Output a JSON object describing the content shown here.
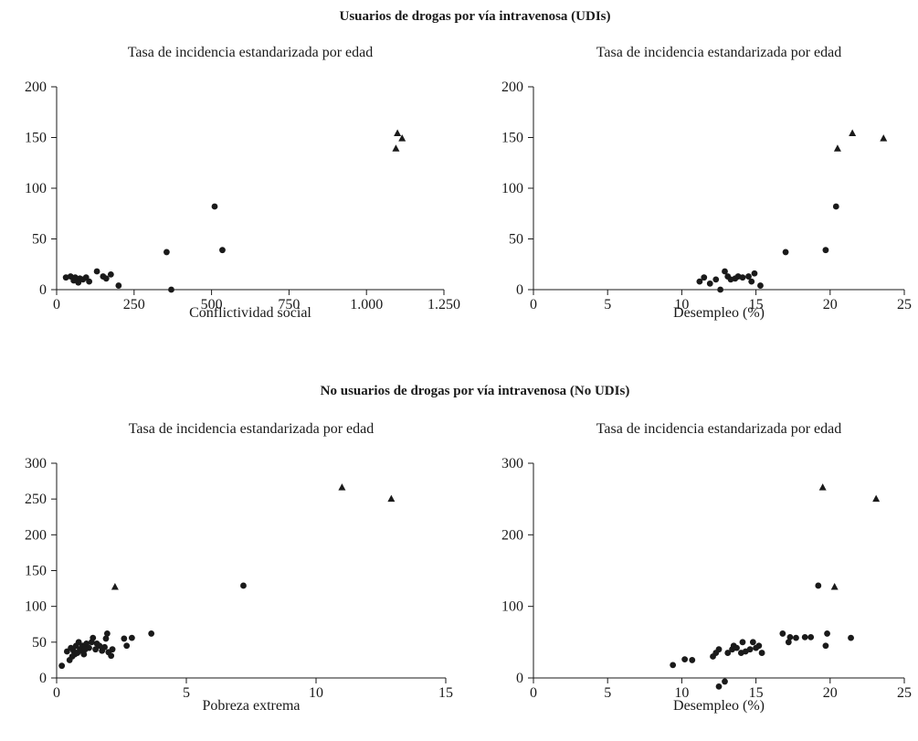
{
  "sections": [
    {
      "title": "Usuarios de drogas por vía intravenosa (UDIs)"
    },
    {
      "title": "No usuarios de drogas por vía intravenosa (No UDIs)"
    }
  ],
  "colors": {
    "marker": "#1a1a1a",
    "axis": "#1a1a1a",
    "background": "#ffffff"
  },
  "chart_data": [
    {
      "type": "scatter",
      "title": "Tasa de incidencia estandarizada por edad",
      "xlabel": "Conflictividad social",
      "xlim": [
        0,
        1250
      ],
      "ylim": [
        0,
        200
      ],
      "xticks": [
        0,
        250,
        500,
        750,
        1000,
        1250
      ],
      "xtick_labels": [
        "0",
        "250",
        "500",
        "750",
        "1.000",
        "1.250"
      ],
      "yticks": [
        0,
        50,
        100,
        150,
        200
      ],
      "ytick_labels": [
        "0",
        "50",
        "100",
        "150",
        "200"
      ],
      "series": [
        {
          "marker": "circle",
          "points": [
            [
              30,
              12
            ],
            [
              45,
              13
            ],
            [
              55,
              9
            ],
            [
              60,
              12
            ],
            [
              70,
              7
            ],
            [
              75,
              11
            ],
            [
              85,
              10
            ],
            [
              95,
              12
            ],
            [
              105,
              8
            ],
            [
              130,
              18
            ],
            [
              150,
              13
            ],
            [
              160,
              11
            ],
            [
              175,
              15
            ],
            [
              200,
              4
            ],
            [
              355,
              37
            ],
            [
              370,
              0
            ],
            [
              510,
              82
            ],
            [
              535,
              39
            ]
          ]
        },
        {
          "marker": "triangle",
          "points": [
            [
              1100,
              154
            ],
            [
              1095,
              139
            ],
            [
              1115,
              149
            ]
          ]
        }
      ]
    },
    {
      "type": "scatter",
      "title": "Tasa de incidencia estandarizada por edad",
      "xlabel": "Desempleo (%)",
      "xlim": [
        0,
        25
      ],
      "ylim": [
        0,
        200
      ],
      "xticks": [
        0,
        5,
        10,
        15,
        20,
        25
      ],
      "xtick_labels": [
        "0",
        "5",
        "10",
        "15",
        "20",
        "25"
      ],
      "yticks": [
        0,
        50,
        100,
        150,
        200
      ],
      "ytick_labels": [
        "0",
        "50",
        "100",
        "150",
        "200"
      ],
      "series": [
        {
          "marker": "circle",
          "points": [
            [
              11.2,
              8
            ],
            [
              11.5,
              12
            ],
            [
              11.9,
              6
            ],
            [
              12.3,
              10
            ],
            [
              12.6,
              0
            ],
            [
              12.9,
              18
            ],
            [
              13.1,
              13
            ],
            [
              13.3,
              10
            ],
            [
              13.6,
              11
            ],
            [
              13.8,
              13
            ],
            [
              14.1,
              12
            ],
            [
              14.5,
              13
            ],
            [
              14.7,
              8
            ],
            [
              14.9,
              16
            ],
            [
              15.3,
              4
            ],
            [
              17.0,
              37
            ],
            [
              19.7,
              39
            ],
            [
              20.4,
              82
            ]
          ]
        },
        {
          "marker": "triangle",
          "points": [
            [
              20.5,
              139
            ],
            [
              21.5,
              154
            ],
            [
              23.6,
              149
            ]
          ]
        }
      ]
    },
    {
      "type": "scatter",
      "title": "Tasa de incidencia estandarizada por edad",
      "xlabel": "Pobreza extrema",
      "xlim": [
        0,
        15
      ],
      "ylim": [
        0,
        300
      ],
      "xticks": [
        0,
        5,
        10,
        15
      ],
      "xtick_labels": [
        "0",
        "5",
        "10",
        "15"
      ],
      "yticks": [
        0,
        50,
        100,
        150,
        200,
        250,
        300
      ],
      "ytick_labels": [
        "0",
        "50",
        "100",
        "150",
        "200",
        "250",
        "300"
      ],
      "series": [
        {
          "marker": "circle",
          "points": [
            [
              0.2,
              17
            ],
            [
              0.4,
              37
            ],
            [
              0.5,
              25
            ],
            [
              0.55,
              42
            ],
            [
              0.6,
              30
            ],
            [
              0.65,
              38
            ],
            [
              0.7,
              33
            ],
            [
              0.75,
              45
            ],
            [
              0.8,
              35
            ],
            [
              0.85,
              50
            ],
            [
              0.9,
              40
            ],
            [
              0.95,
              38
            ],
            [
              1.0,
              45
            ],
            [
              1.05,
              33
            ],
            [
              1.1,
              40
            ],
            [
              1.15,
              48
            ],
            [
              1.25,
              42
            ],
            [
              1.35,
              50
            ],
            [
              1.4,
              56
            ],
            [
              1.5,
              40
            ],
            [
              1.55,
              48
            ],
            [
              1.65,
              45
            ],
            [
              1.75,
              38
            ],
            [
              1.85,
              43
            ],
            [
              1.9,
              55
            ],
            [
              1.95,
              62
            ],
            [
              2.0,
              36
            ],
            [
              2.1,
              31
            ],
            [
              2.15,
              40
            ],
            [
              2.6,
              55
            ],
            [
              2.7,
              45
            ],
            [
              2.9,
              56
            ],
            [
              3.65,
              62
            ],
            [
              7.2,
              129
            ]
          ]
        },
        {
          "marker": "triangle",
          "points": [
            [
              2.25,
              127
            ],
            [
              11.0,
              266
            ],
            [
              12.9,
              250
            ]
          ]
        }
      ]
    },
    {
      "type": "scatter",
      "title": "Tasa de incidencia estandarizada por edad",
      "xlabel": "Desempleo (%)",
      "xlim": [
        0,
        25
      ],
      "ylim": [
        0,
        300
      ],
      "xticks": [
        0,
        5,
        10,
        15,
        20,
        25
      ],
      "xtick_labels": [
        "0",
        "5",
        "10",
        "15",
        "20",
        "25"
      ],
      "yticks": [
        0,
        100,
        200,
        300
      ],
      "ytick_labels": [
        "0",
        "100",
        "200",
        "300"
      ],
      "series": [
        {
          "marker": "circle",
          "points": [
            [
              9.4,
              18
            ],
            [
              10.2,
              26
            ],
            [
              10.7,
              25
            ],
            [
              12.1,
              30
            ],
            [
              12.3,
              35
            ],
            [
              12.5,
              40
            ],
            [
              12.5,
              -12
            ],
            [
              12.9,
              -5
            ],
            [
              13.1,
              35
            ],
            [
              13.4,
              40
            ],
            [
              13.5,
              45
            ],
            [
              13.7,
              42
            ],
            [
              14.0,
              35
            ],
            [
              14.1,
              50
            ],
            [
              14.3,
              37
            ],
            [
              14.6,
              40
            ],
            [
              14.8,
              50
            ],
            [
              15.0,
              42
            ],
            [
              15.2,
              45
            ],
            [
              15.4,
              35
            ],
            [
              16.8,
              62
            ],
            [
              17.2,
              50
            ],
            [
              17.3,
              57
            ],
            [
              17.7,
              56
            ],
            [
              18.3,
              57
            ],
            [
              18.7,
              57
            ],
            [
              19.2,
              129
            ],
            [
              19.7,
              45
            ],
            [
              19.8,
              62
            ],
            [
              21.4,
              56
            ]
          ]
        },
        {
          "marker": "triangle",
          "points": [
            [
              19.5,
              266
            ],
            [
              20.3,
              127
            ],
            [
              23.1,
              250
            ]
          ]
        }
      ]
    }
  ]
}
